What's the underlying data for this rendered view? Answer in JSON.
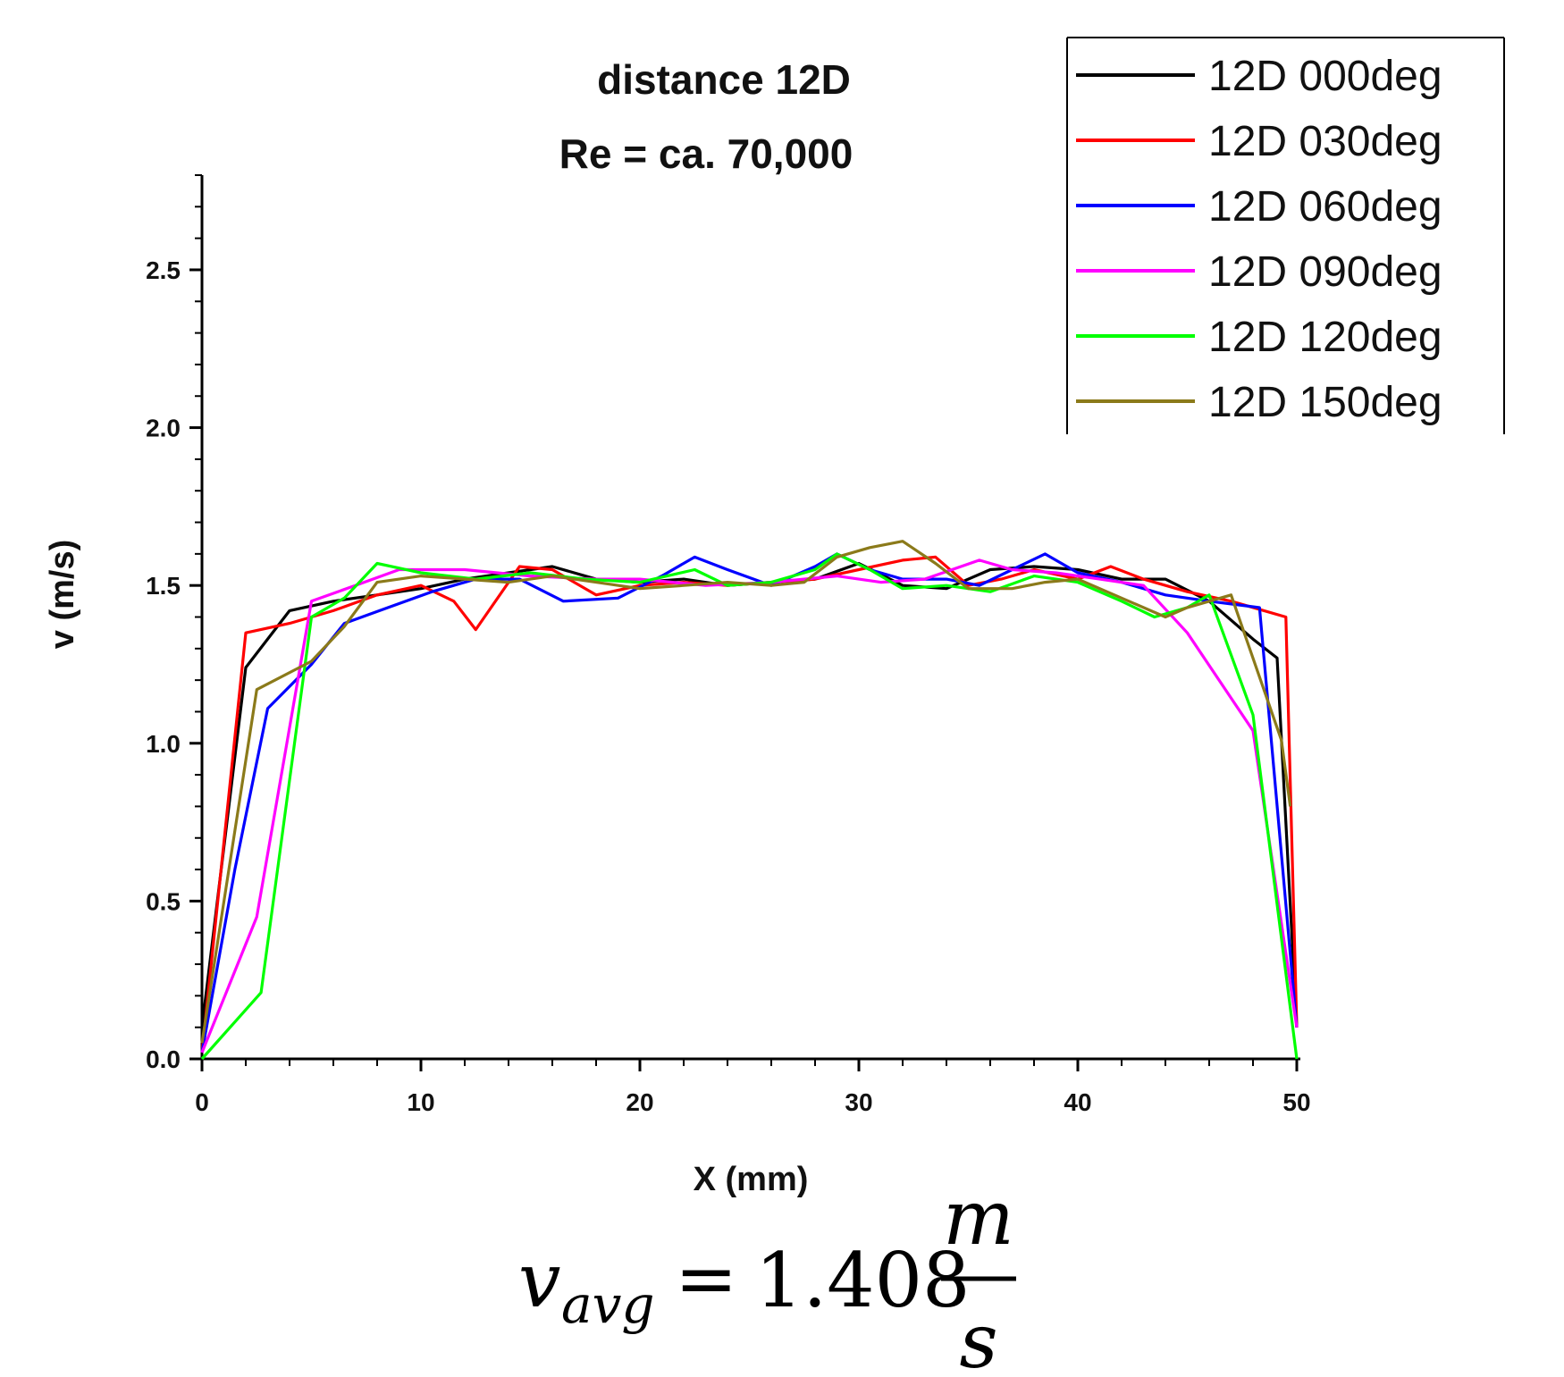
{
  "chart_data": {
    "type": "line",
    "title": "distance 12D",
    "subtitle": "Re = ca. 70,000",
    "xlabel": "X (mm)",
    "ylabel": "v (m/s)",
    "xlim": [
      0,
      50
    ],
    "ylim": [
      0,
      2.8
    ],
    "xticks": [
      0,
      10,
      20,
      30,
      40,
      50
    ],
    "xtick_labels": [
      "0",
      "10",
      "20",
      "30",
      "40",
      "50"
    ],
    "yticks": [
      0.0,
      0.5,
      1.0,
      1.5,
      2.0,
      2.5
    ],
    "ytick_labels": [
      "0.0",
      "0.5",
      "1.0",
      "1.5",
      "2.0",
      "2.5"
    ],
    "legend_position": "top-right",
    "series": [
      {
        "name": "12D 000deg",
        "color": "#000000",
        "x": [
          0,
          2,
          4,
          6,
          8,
          10,
          12,
          14,
          16,
          18,
          20,
          22,
          24,
          26,
          28,
          30,
          32,
          34,
          36,
          38,
          40,
          42,
          44,
          46,
          48,
          49.1,
          50
        ],
        "y": [
          0.1,
          1.24,
          1.42,
          1.45,
          1.47,
          1.49,
          1.52,
          1.54,
          1.56,
          1.52,
          1.51,
          1.52,
          1.5,
          1.51,
          1.52,
          1.57,
          1.5,
          1.49,
          1.55,
          1.56,
          1.55,
          1.52,
          1.52,
          1.45,
          1.33,
          1.27,
          0.1
        ]
      },
      {
        "name": "12D 030deg",
        "color": "#ff0000",
        "x": [
          0,
          2,
          4,
          6,
          8,
          10,
          11.5,
          12.5,
          14.5,
          16,
          18,
          20,
          22,
          24,
          26,
          28,
          30,
          32,
          33.5,
          35,
          36.5,
          38,
          40,
          41.5,
          43,
          45,
          47,
          49.5,
          50
        ],
        "y": [
          0.02,
          1.35,
          1.38,
          1.42,
          1.47,
          1.5,
          1.45,
          1.36,
          1.56,
          1.55,
          1.47,
          1.5,
          1.51,
          1.5,
          1.51,
          1.52,
          1.55,
          1.58,
          1.59,
          1.5,
          1.52,
          1.55,
          1.52,
          1.56,
          1.52,
          1.48,
          1.45,
          1.4,
          0.1
        ]
      },
      {
        "name": "12D 060deg",
        "color": "#0000ff",
        "x": [
          0,
          1.5,
          3,
          5,
          6.5,
          8.5,
          10.5,
          12.5,
          14.5,
          16.5,
          19,
          21,
          22.5,
          24,
          26,
          28,
          29,
          30.5,
          32,
          34,
          35.5,
          37,
          38.5,
          40,
          42,
          44,
          46,
          48.3,
          50
        ],
        "y": [
          0.02,
          0.6,
          1.11,
          1.25,
          1.38,
          1.43,
          1.48,
          1.52,
          1.52,
          1.45,
          1.46,
          1.53,
          1.59,
          1.55,
          1.5,
          1.56,
          1.6,
          1.55,
          1.52,
          1.52,
          1.5,
          1.55,
          1.6,
          1.54,
          1.51,
          1.47,
          1.45,
          1.43,
          0.1
        ]
      },
      {
        "name": "12D 090deg",
        "color": "#ff00ff",
        "x": [
          0,
          2.5,
          5,
          7,
          9,
          12,
          15,
          18,
          20,
          23,
          26,
          29,
          31,
          33,
          35.5,
          37,
          39,
          41,
          43,
          45,
          48,
          50
        ],
        "y": [
          0.02,
          0.45,
          1.45,
          1.5,
          1.55,
          1.55,
          1.53,
          1.52,
          1.52,
          1.5,
          1.51,
          1.53,
          1.51,
          1.52,
          1.58,
          1.55,
          1.54,
          1.52,
          1.5,
          1.35,
          1.04,
          0.1
        ]
      },
      {
        "name": "12D 120deg",
        "color": "#00ff00",
        "x": [
          0,
          2.7,
          5,
          6.5,
          8,
          10,
          12.5,
          15,
          17.5,
          20,
          22.5,
          24,
          26,
          28,
          29,
          30.5,
          32,
          34,
          36,
          38,
          40,
          42,
          43.5,
          45,
          46,
          48,
          50
        ],
        "y": [
          0.0,
          0.21,
          1.4,
          1.46,
          1.57,
          1.54,
          1.52,
          1.54,
          1.52,
          1.51,
          1.55,
          1.5,
          1.51,
          1.55,
          1.6,
          1.55,
          1.49,
          1.5,
          1.48,
          1.53,
          1.51,
          1.45,
          1.4,
          1.43,
          1.47,
          1.09,
          0.0
        ]
      },
      {
        "name": "12D 150deg",
        "color": "#8b7a1a",
        "x": [
          0,
          2.5,
          5,
          6.5,
          8,
          10,
          12,
          14,
          16,
          18,
          20,
          22,
          24,
          26,
          27.5,
          29,
          30.5,
          32,
          33.5,
          35,
          37,
          38.5,
          40,
          42,
          44,
          45,
          47,
          49.3,
          49.7
        ],
        "y": [
          0.05,
          1.17,
          1.26,
          1.37,
          1.51,
          1.53,
          1.52,
          1.51,
          1.53,
          1.51,
          1.49,
          1.5,
          1.51,
          1.5,
          1.51,
          1.59,
          1.62,
          1.64,
          1.57,
          1.49,
          1.49,
          1.51,
          1.52,
          1.46,
          1.4,
          1.43,
          1.47,
          1.01,
          0.8
        ]
      }
    ]
  },
  "formula": {
    "lhs_symbol": "v",
    "lhs_subscript": "avg",
    "equals": "=",
    "value": "1.408",
    "unit_numerator": "m",
    "unit_denominator": "s"
  }
}
